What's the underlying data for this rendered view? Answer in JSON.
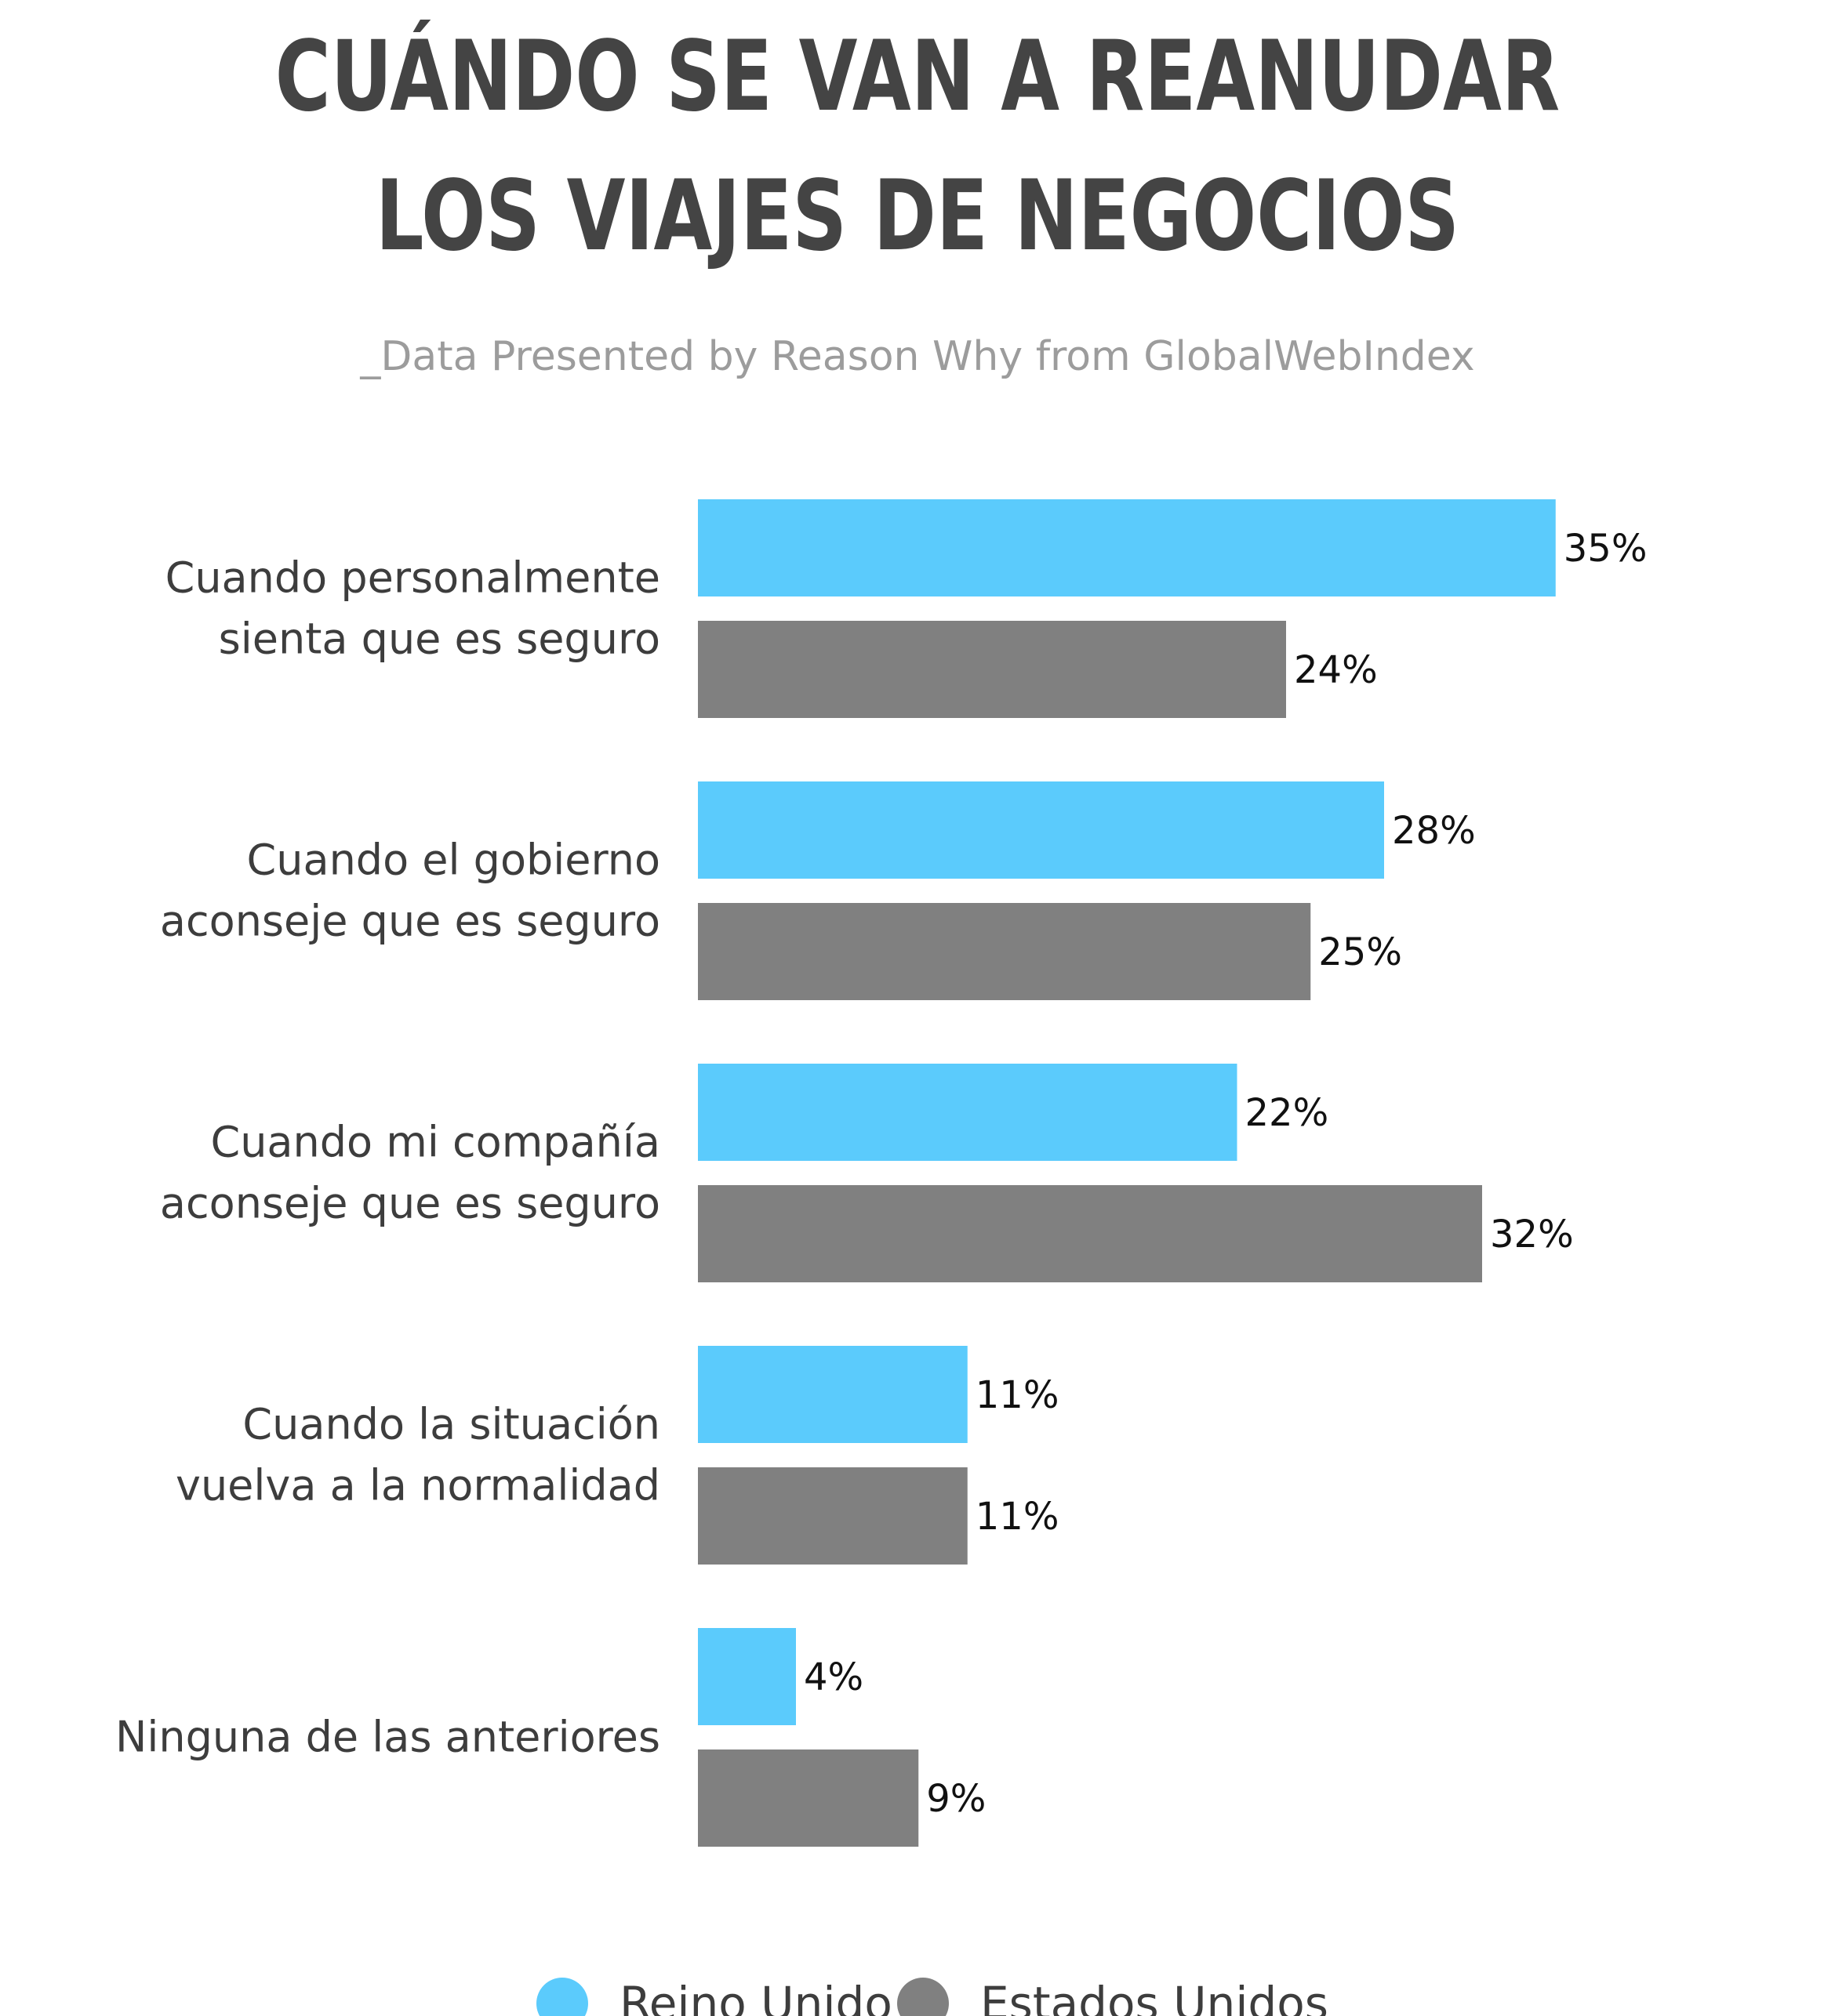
{
  "chart_data": {
    "type": "bar",
    "orientation": "horizontal",
    "title": [
      "CUÁNDO SE VAN A REANUDAR",
      "LOS VIAJES DE NEGOCIOS"
    ],
    "subtitle": "_Data Presented by Reason Why from GlobalWebIndex",
    "categories": [
      [
        "Cuando personalmente",
        "sienta que es seguro"
      ],
      [
        "Cuando el gobierno",
        "aconseje que es seguro"
      ],
      [
        "Cuando mi compañía",
        "aconseje que es seguro"
      ],
      [
        "Cuando la situación",
        "vuelva a la normalidad"
      ],
      [
        "Ninguna de las anteriores"
      ]
    ],
    "series": [
      {
        "name": "Reino Unido",
        "color": "#5bcbfc",
        "values": [
          35,
          28,
          22,
          11,
          4
        ],
        "labels": [
          "35%",
          "28%",
          "22%",
          "11%",
          "4%"
        ]
      },
      {
        "name": "Estados Unidos",
        "color": "#808080",
        "values": [
          24,
          25,
          32,
          11,
          9
        ],
        "labels": [
          "24%",
          "25%",
          "32%",
          "11%",
          "9%"
        ]
      }
    ],
    "xlim": [
      0,
      40
    ],
    "grid": false,
    "legend_position": "bottom-center"
  }
}
